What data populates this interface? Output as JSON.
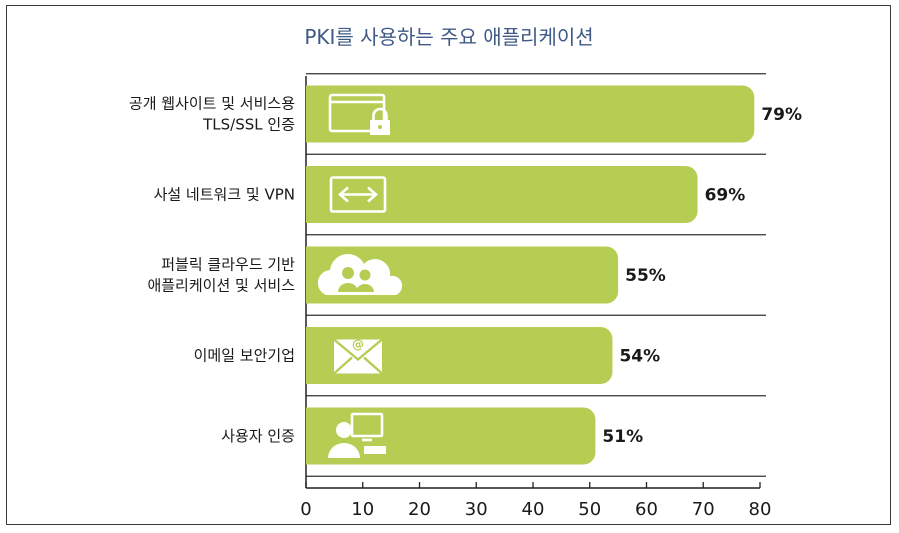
{
  "chart_data": {
    "type": "bar",
    "orientation": "horizontal",
    "title": "PKI를 사용하는 주요 애플리케이션",
    "xlabel": "",
    "ylabel": "",
    "xlim": [
      0,
      80
    ],
    "xticks": [
      0,
      10,
      20,
      30,
      40,
      50,
      60,
      70,
      80
    ],
    "value_suffix": "%",
    "grid": "horizontal lines between bars",
    "bar_color": "#b5cd52",
    "categories": [
      {
        "lines": [
          "공개 웹사이트 및 서비스용",
          "TLS/SSL 인증"
        ],
        "icon": "browser-lock-icon"
      },
      {
        "lines": [
          "사설 네트워크 및 VPN"
        ],
        "icon": "network-arrows-icon"
      },
      {
        "lines": [
          "퍼블릭 클라우드 기반",
          "애플리케이션 및 서비스"
        ],
        "icon": "cloud-users-icon"
      },
      {
        "lines": [
          "이메일 보안기업"
        ],
        "icon": "email-icon"
      },
      {
        "lines": [
          "사용자 인증"
        ],
        "icon": "user-computer-icon"
      }
    ],
    "values": [
      79,
      69,
      55,
      54,
      51
    ]
  }
}
